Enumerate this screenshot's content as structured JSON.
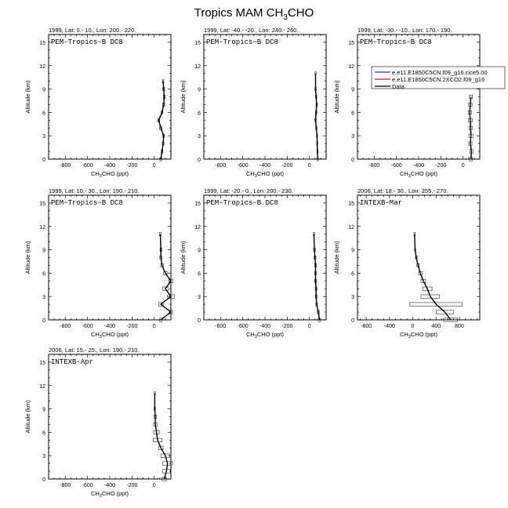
{
  "title": {
    "main": "Tropics MAM CH",
    "sub": "3",
    "tail": "CHO"
  },
  "common": {
    "ylabel": "Altitude (km)",
    "xlabel_pre": "CH",
    "xlabel_sub": "3",
    "xlabel_post": "CHO (ppt)",
    "yticks": [
      0,
      3,
      6,
      9,
      12,
      15
    ]
  },
  "legend": {
    "entries": [
      {
        "label": "e.e11.E1850C5CN.f09_g16.cice5.00",
        "color": "#1f3cff"
      },
      {
        "label": "e.e11.E1850C5CN.2XCO2.f09_g16",
        "color": "#e8131b"
      },
      {
        "label": "Data",
        "color": "#000000"
      }
    ]
  },
  "chart_data": [
    {
      "type": "line",
      "header": "1999, Lat: 0.- 10., Lon: 200.- 220.",
      "campaign": "PEM−Tropics−B DC8",
      "xlim": [
        -950,
        150
      ],
      "ylim": [
        0,
        16
      ],
      "xticks": [
        -800,
        -600,
        -400,
        -200,
        0
      ],
      "series": [
        {
          "x": [
            60,
            70,
            80,
            85,
            60,
            40,
            70,
            85,
            90,
            85,
            80
          ],
          "y": [
            0,
            1,
            2,
            3,
            4,
            5,
            6,
            7,
            8,
            9,
            10
          ],
          "xerr": [
            8,
            8,
            8,
            8,
            10,
            10,
            8,
            10,
            8,
            8,
            6
          ]
        }
      ]
    },
    {
      "type": "line",
      "header": "1999, Lat: -40.- -20., Lon: 240.- 260.",
      "campaign": "PEM−Tropics−B DC8",
      "xlim": [
        -950,
        150
      ],
      "ylim": [
        0,
        16
      ],
      "xticks": [
        -800,
        -600,
        -400,
        -200,
        0
      ],
      "series": [
        {
          "x": [
            75,
            72,
            70,
            68,
            62,
            55,
            60,
            65,
            60,
            55,
            55
          ],
          "y": [
            0,
            1,
            2,
            3,
            4,
            5,
            6,
            7,
            8,
            9,
            11
          ],
          "xerr": [
            5,
            5,
            5,
            5,
            6,
            6,
            6,
            6,
            6,
            6,
            5
          ]
        }
      ]
    },
    {
      "type": "line",
      "header": "1999, Lat: -30.- -10., Lon: 170.- 190.",
      "campaign": "PEM−Tropics−B DC8",
      "xlim": [
        -950,
        150
      ],
      "ylim": [
        0,
        16
      ],
      "xticks": [
        -800,
        -600,
        -400,
        -200,
        0
      ],
      "series": [
        {
          "x": [
            70,
            75,
            65,
            70,
            68,
            65,
            60,
            65,
            70
          ],
          "y": [
            0,
            1,
            2,
            3,
            4,
            5,
            6,
            7,
            8
          ],
          "xerr": [
            15,
            15,
            15,
            18,
            15,
            18,
            15,
            15,
            15
          ]
        }
      ]
    },
    {
      "type": "line",
      "header": "1999, Lat: 10.- 30., Lon: 190.- 210.",
      "campaign": "PEM−Tropics−B DC8",
      "xlim": [
        -950,
        150
      ],
      "ylim": [
        0,
        16
      ],
      "xticks": [
        -800,
        -600,
        -400,
        -200,
        0
      ],
      "series": [
        {
          "x": [
            60,
            150,
            60,
            150,
            100,
            150,
            100,
            70,
            60,
            60,
            55
          ],
          "y": [
            0,
            1,
            2,
            3,
            4,
            5,
            6,
            7,
            8,
            9,
            11
          ],
          "xerr": [
            10,
            15,
            20,
            30,
            25,
            20,
            15,
            12,
            10,
            8,
            8
          ]
        }
      ]
    },
    {
      "type": "line",
      "header": "1999, Lat: -20.- 0., Lon: 200.- 230.",
      "campaign": "PEM−Tropics−B DC8",
      "xlim": [
        -950,
        150
      ],
      "ylim": [
        0,
        16
      ],
      "xticks": [
        -800,
        -600,
        -400,
        -200,
        0
      ],
      "series": [
        {
          "x": [
            90,
            80,
            65,
            60,
            60,
            55,
            55,
            55,
            50,
            45,
            40
          ],
          "y": [
            0,
            1,
            2,
            3,
            4,
            5,
            6,
            7,
            8,
            9,
            11
          ],
          "xerr": [
            10,
            10,
            8,
            8,
            8,
            8,
            8,
            8,
            8,
            8,
            6
          ]
        }
      ]
    },
    {
      "type": "line",
      "header": "2006, Lat: 18.- 30., Lon: 255.- 270.",
      "campaign": "INTEXB−Mar",
      "xlim": [
        -950,
        1150
      ],
      "ylim": [
        0,
        16
      ],
      "xticks": [
        -800,
        -400,
        0,
        400,
        800
      ],
      "series": [
        {
          "x": [
            650,
            550,
            400,
            300,
            250,
            180,
            130,
            90,
            60,
            40,
            30
          ],
          "y": [
            0,
            1,
            2,
            3,
            4,
            5,
            6,
            7,
            8,
            9,
            11
          ],
          "xerr": [
            120,
            150,
            450,
            160,
            80,
            40,
            30,
            20,
            15,
            10,
            10
          ]
        }
      ]
    },
    {
      "type": "line",
      "header": "2006, Lat: 15.- 25., Lon: 190.- 210.",
      "campaign": "INTEXB−Apr",
      "xlim": [
        -950,
        150
      ],
      "ylim": [
        0,
        16
      ],
      "xticks": [
        -800,
        -600,
        -400,
        -200,
        0
      ],
      "series": [
        {
          "x": [
            90,
            110,
            120,
            100,
            60,
            30,
            20,
            10,
            10,
            5,
            5
          ],
          "y": [
            0,
            1,
            2,
            3,
            4,
            5,
            6,
            7,
            8,
            9,
            11
          ],
          "xerr": [
            20,
            35,
            45,
            40,
            20,
            40,
            25,
            15,
            10,
            6,
            5
          ]
        }
      ]
    }
  ]
}
